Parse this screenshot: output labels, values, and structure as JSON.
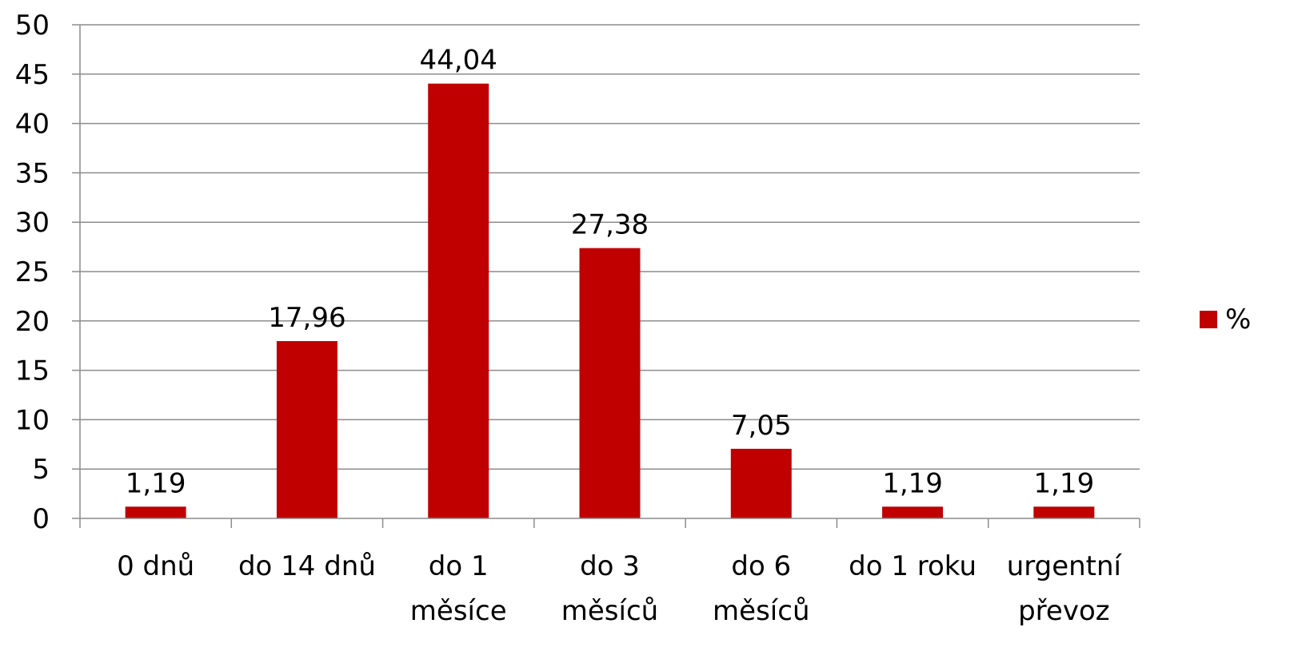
{
  "chart_data": {
    "type": "bar",
    "categories": [
      [
        "0 dnů"
      ],
      [
        "do 14 dnů"
      ],
      [
        "do 1",
        "měsíce"
      ],
      [
        "do 3",
        "měsíců"
      ],
      [
        "do 6",
        "měsíců"
      ],
      [
        "do 1 roku"
      ],
      [
        "urgentní",
        "převoz"
      ]
    ],
    "series": [
      {
        "name": "%",
        "color": "#c00000",
        "values": [
          1.19,
          17.96,
          44.04,
          27.38,
          7.05,
          1.19,
          1.19
        ],
        "data_labels": [
          "1,19",
          "17,96",
          "44,04",
          "27,38",
          "7,05",
          "1,19",
          "1,19"
        ]
      }
    ],
    "y_ticks": [
      "0",
      "5",
      "10",
      "15",
      "20",
      "25",
      "30",
      "35",
      "40",
      "45",
      "50"
    ],
    "ylim": [
      0,
      50
    ],
    "grid": true,
    "legend_position": "right",
    "title": "",
    "xlabel": "",
    "ylabel": ""
  }
}
